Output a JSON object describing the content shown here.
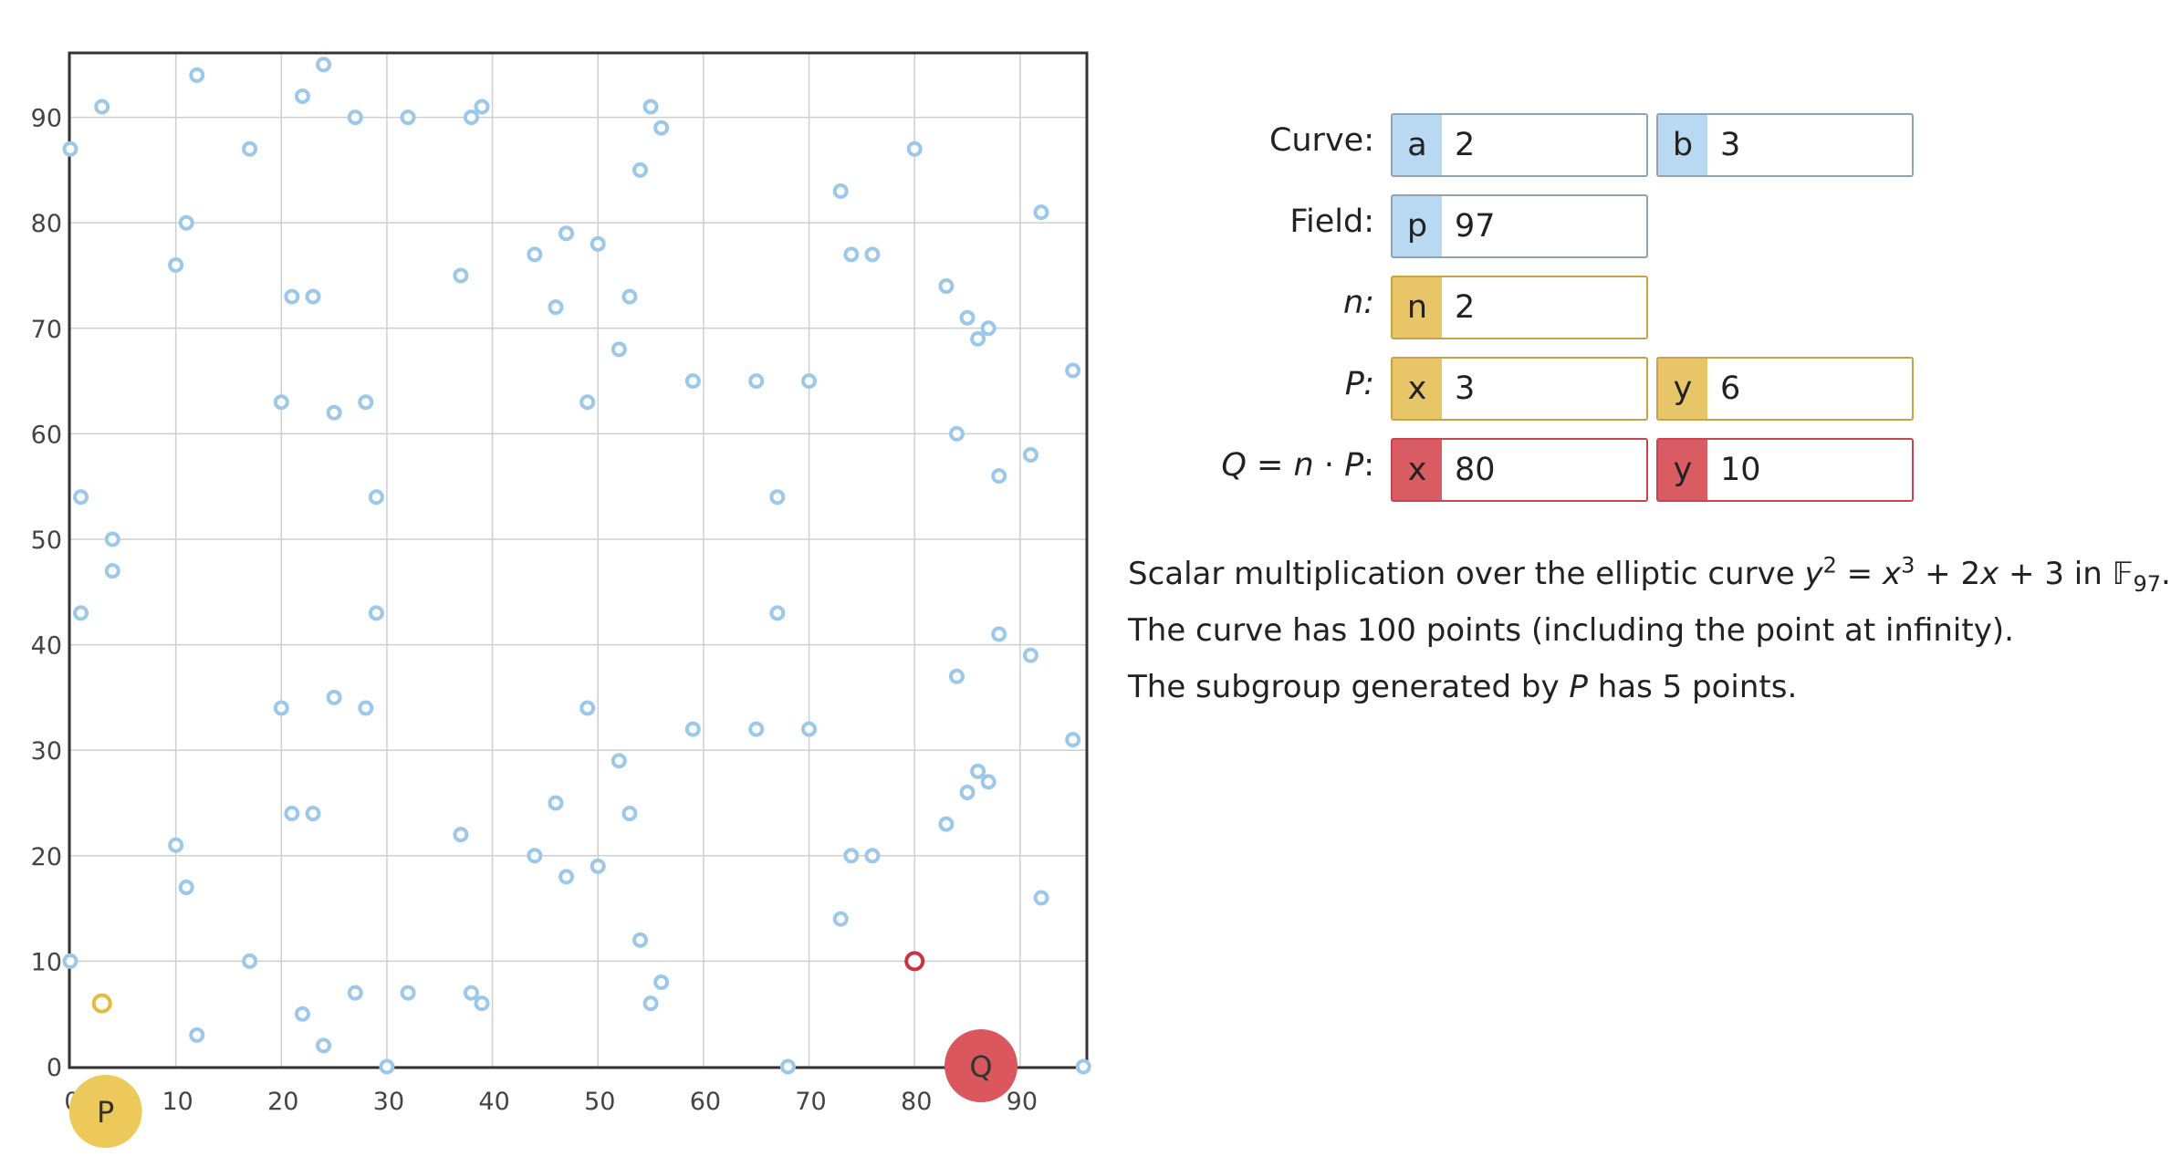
{
  "chart_data": {
    "type": "scatter",
    "title": "",
    "xlabel": "",
    "ylabel": "",
    "xlim": [
      0,
      96.5
    ],
    "ylim": [
      0,
      96.5
    ],
    "x_ticks": [
      "0",
      "10",
      "20",
      "30",
      "40",
      "50",
      "60",
      "70",
      "80",
      "90"
    ],
    "y_ticks": [
      "0",
      "10",
      "20",
      "30",
      "40",
      "50",
      "60",
      "70",
      "80",
      "90"
    ],
    "grid": true,
    "colors": {
      "curve_point": "#9cc8ea",
      "P": "#e8b93a",
      "Q": "#cc3340",
      "P_handle": "#edc85a",
      "Q_handle": "#d9575d"
    },
    "points": [
      [
        0,
        10
      ],
      [
        0,
        87
      ],
      [
        1,
        43
      ],
      [
        1,
        54
      ],
      [
        3,
        91
      ],
      [
        4,
        47
      ],
      [
        4,
        50
      ],
      [
        10,
        21
      ],
      [
        10,
        76
      ],
      [
        11,
        17
      ],
      [
        11,
        80
      ],
      [
        12,
        3
      ],
      [
        12,
        94
      ],
      [
        17,
        10
      ],
      [
        17,
        87
      ],
      [
        20,
        34
      ],
      [
        20,
        63
      ],
      [
        21,
        24
      ],
      [
        21,
        73
      ],
      [
        22,
        5
      ],
      [
        22,
        92
      ],
      [
        23,
        24
      ],
      [
        23,
        73
      ],
      [
        24,
        2
      ],
      [
        24,
        95
      ],
      [
        25,
        35
      ],
      [
        25,
        62
      ],
      [
        27,
        7
      ],
      [
        27,
        90
      ],
      [
        28,
        34
      ],
      [
        28,
        63
      ],
      [
        29,
        43
      ],
      [
        29,
        54
      ],
      [
        30,
        0
      ],
      [
        32,
        7
      ],
      [
        32,
        90
      ],
      [
        37,
        22
      ],
      [
        37,
        75
      ],
      [
        38,
        7
      ],
      [
        38,
        90
      ],
      [
        39,
        6
      ],
      [
        39,
        91
      ],
      [
        44,
        20
      ],
      [
        44,
        77
      ],
      [
        46,
        25
      ],
      [
        46,
        72
      ],
      [
        47,
        18
      ],
      [
        47,
        79
      ],
      [
        49,
        34
      ],
      [
        49,
        63
      ],
      [
        50,
        19
      ],
      [
        50,
        78
      ],
      [
        52,
        29
      ],
      [
        52,
        68
      ],
      [
        53,
        24
      ],
      [
        53,
        73
      ],
      [
        54,
        12
      ],
      [
        54,
        85
      ],
      [
        55,
        6
      ],
      [
        55,
        91
      ],
      [
        56,
        8
      ],
      [
        56,
        89
      ],
      [
        59,
        32
      ],
      [
        59,
        65
      ],
      [
        65,
        32
      ],
      [
        65,
        65
      ],
      [
        67,
        43
      ],
      [
        67,
        54
      ],
      [
        68,
        0
      ],
      [
        70,
        32
      ],
      [
        70,
        65
      ],
      [
        73,
        14
      ],
      [
        73,
        83
      ],
      [
        74,
        20
      ],
      [
        74,
        77
      ],
      [
        76,
        20
      ],
      [
        76,
        77
      ],
      [
        80,
        10
      ],
      [
        80,
        87
      ],
      [
        83,
        23
      ],
      [
        83,
        74
      ],
      [
        84,
        37
      ],
      [
        84,
        60
      ],
      [
        85,
        26
      ],
      [
        85,
        71
      ],
      [
        86,
        28
      ],
      [
        86,
        69
      ],
      [
        87,
        27
      ],
      [
        87,
        70
      ],
      [
        88,
        41
      ],
      [
        88,
        56
      ],
      [
        91,
        39
      ],
      [
        91,
        58
      ],
      [
        92,
        16
      ],
      [
        92,
        81
      ],
      [
        95,
        31
      ],
      [
        95,
        66
      ],
      [
        96,
        0
      ]
    ],
    "P": {
      "x": 3,
      "y": 6
    },
    "Q": {
      "x": 80,
      "y": 10
    },
    "P_handle_label": "P",
    "Q_handle_label": "Q"
  },
  "controls": {
    "curve_label": "Curve:",
    "field_label": "Field:",
    "n_label": "n:",
    "p_point_label": "P:",
    "q_eq": "Q",
    "q_n": "n",
    "q_p": "P",
    "q_colon": ":",
    "a": {
      "tag": "a",
      "value": "2"
    },
    "b": {
      "tag": "b",
      "value": "3"
    },
    "p": {
      "tag": "p",
      "value": "97"
    },
    "n": {
      "tag": "n",
      "value": "2"
    },
    "px": {
      "tag": "x",
      "value": "3"
    },
    "py": {
      "tag": "y",
      "value": "6"
    },
    "qx": {
      "tag": "x",
      "value": "80"
    },
    "qy": {
      "tag": "y",
      "value": "10"
    }
  },
  "description": {
    "line1_prefix": "Scalar multiplication over the elliptic curve ",
    "eq_y": "y",
    "eq_y_exp": "2",
    "eq_equals": " = ",
    "eq_x": "x",
    "eq_x_exp": "3",
    "eq_plus1": " + 2",
    "eq_x2": "x",
    "eq_plus2": " + 3 in ",
    "field_symbol": "𝔽",
    "field_sub": "97",
    "line1_end": ".",
    "line2": "The curve has 100 points (including the point at infinity).",
    "line3_prefix": "The subgroup generated by ",
    "line3_P": "P",
    "line3_suffix": " has 5 points."
  }
}
